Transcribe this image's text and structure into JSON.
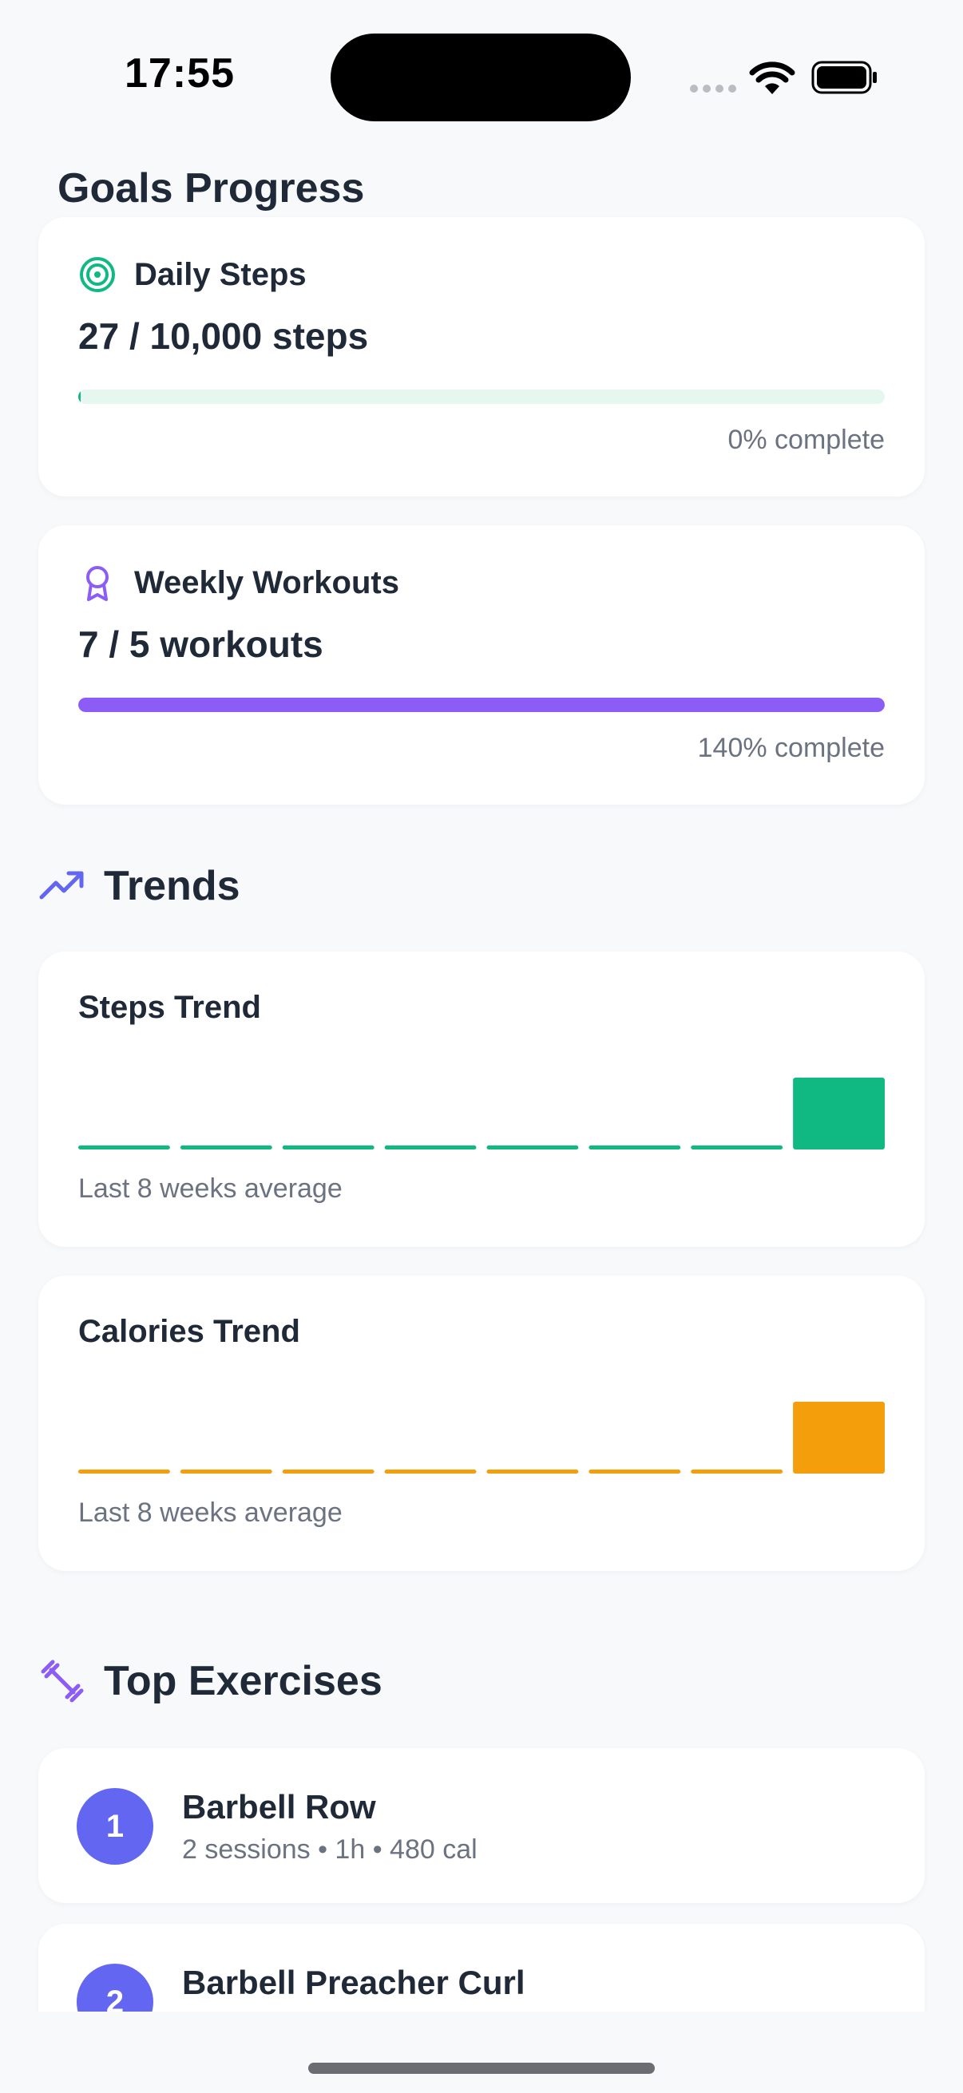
{
  "status_bar": {
    "time": "17:55"
  },
  "goals": {
    "title": "Goals Progress",
    "items": [
      {
        "label": "Daily Steps",
        "value": "27 / 10,000 steps",
        "percent_text": "0% complete",
        "progress_fraction": 0.0027,
        "color": "#10b981",
        "track_color": "#e6f7f0",
        "icon": "target-icon"
      },
      {
        "label": "Weekly Workouts",
        "value": "7 / 5 workouts",
        "percent_text": "140% complete",
        "progress_fraction": 1.0,
        "color": "#8b5cf6",
        "track_color": "#ede9fe",
        "icon": "award-icon"
      }
    ]
  },
  "trends": {
    "title": "Trends",
    "icon": "trending-up-icon",
    "icon_color": "#6366f1",
    "cards": [
      {
        "title": "Steps Trend",
        "footer": "Last 8 weeks average",
        "color": "#10b981",
        "values": [
          0,
          0,
          0,
          0,
          0,
          0,
          0,
          1
        ]
      },
      {
        "title": "Calories Trend",
        "footer": "Last 8 weeks average",
        "color": "#f59e0b",
        "values": [
          0,
          0,
          0,
          0,
          0,
          0,
          0,
          1
        ]
      }
    ]
  },
  "top_exercises": {
    "title": "Top Exercises",
    "icon": "dumbbell-icon",
    "icon_color": "#8b5cf6",
    "items": [
      {
        "rank": "1",
        "name": "Barbell Row",
        "meta": "2 sessions • 1h • 480 cal"
      },
      {
        "rank": "2",
        "name": "Barbell Preacher Curl",
        "meta": ""
      }
    ]
  }
}
